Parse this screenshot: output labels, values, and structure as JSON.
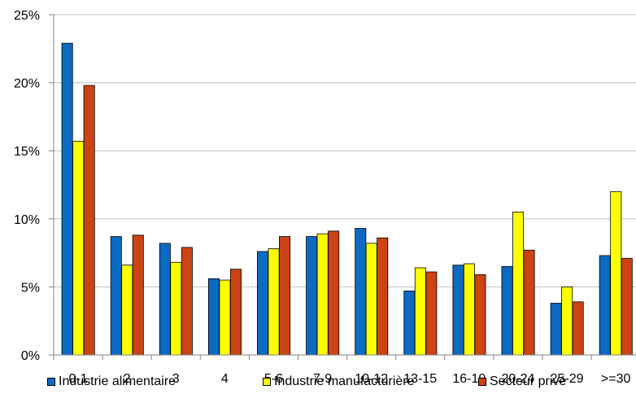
{
  "chart_data": {
    "type": "bar",
    "categories": [
      "0-1",
      "2",
      "3",
      "4",
      "5-6",
      "7-9",
      "10-12",
      "13-15",
      "16-19",
      "20-24",
      "25-29",
      ">=30"
    ],
    "series": [
      {
        "name": "Industrie alimentaire",
        "color": "#0b6ac2",
        "values": [
          22.9,
          8.7,
          8.2,
          5.6,
          7.6,
          8.7,
          9.3,
          4.7,
          6.6,
          6.5,
          3.8,
          7.3
        ]
      },
      {
        "name": "Industrie manufacturière",
        "color": "#ffff00",
        "values": [
          15.7,
          6.6,
          6.8,
          5.5,
          7.8,
          8.9,
          8.2,
          6.4,
          6.7,
          10.5,
          5.0,
          12.0
        ]
      },
      {
        "name": "Secteur privé",
        "color": "#cc4314",
        "values": [
          19.8,
          8.8,
          7.9,
          6.3,
          8.7,
          9.1,
          8.6,
          6.1,
          5.9,
          7.7,
          3.9,
          7.1
        ]
      }
    ],
    "y_ticks": [
      "0%",
      "5%",
      "10%",
      "15%",
      "20%",
      "25%"
    ],
    "ylim": [
      0,
      25
    ],
    "grid": true,
    "legend_position": "bottom"
  }
}
